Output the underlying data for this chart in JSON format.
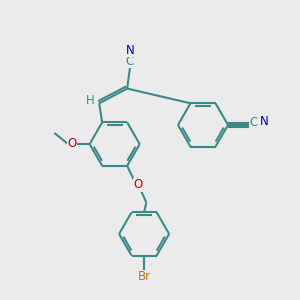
{
  "bg_color": "#ebebeb",
  "bond_color": "#3a8a8a",
  "bond_width": 1.5,
  "dbo": 0.08,
  "atom_colors": {
    "N": "#0000cc",
    "O": "#cc0000",
    "Br": "#cc7700",
    "C": "#3a8a8a",
    "H": "#3a8a8a"
  },
  "fs": 8.5
}
